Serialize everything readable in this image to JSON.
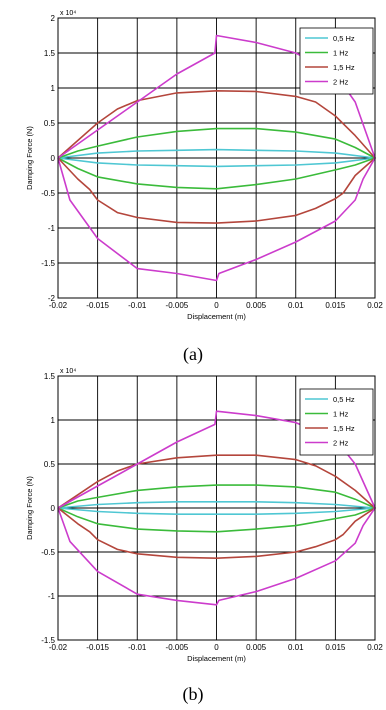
{
  "chart_data": [
    {
      "type": "line",
      "caption": "(a)",
      "xlabel": "Displacement (m)",
      "ylabel": "Damping Force (N)",
      "exponent": "x 10⁴",
      "xlim": [
        -0.02,
        0.02
      ],
      "ylim": [
        -2,
        2
      ],
      "xticks": [
        -0.02,
        -0.015,
        -0.01,
        -0.005,
        0,
        0.005,
        0.01,
        0.015,
        0.02
      ],
      "xticklabels": [
        "-0.02",
        "-0.015",
        "-0.01",
        "-0.005",
        "0",
        "0.005",
        "0.01",
        "0.015",
        "0.02"
      ],
      "yticks": [
        -2,
        -1.5,
        -1,
        -0.5,
        0,
        0.5,
        1,
        1.5,
        2
      ],
      "yticklabels": [
        "-2",
        "-1.5",
        "-1",
        "-0.5",
        "0",
        "0.5",
        "1",
        "1.5",
        "2"
      ],
      "grid": true,
      "legend_position": "top-right",
      "series": [
        {
          "name": "0,5 Hz",
          "color": "#4fc7d3",
          "x": [
            -0.02,
            -0.015,
            -0.01,
            -0.005,
            0,
            0.005,
            0.01,
            0.015,
            0.02,
            0.015,
            0.01,
            0.005,
            0,
            -0.005,
            -0.01,
            -0.015,
            -0.02
          ],
          "y": [
            0,
            0.07,
            0.1,
            0.11,
            0.12,
            0.11,
            0.1,
            0.07,
            0,
            -0.07,
            -0.1,
            -0.11,
            -0.12,
            -0.11,
            -0.1,
            -0.07,
            0
          ]
        },
        {
          "name": "1 Hz",
          "color": "#3bbb3b",
          "x": [
            -0.02,
            -0.0175,
            -0.015,
            -0.01,
            -0.005,
            0,
            0.005,
            0.01,
            0.015,
            0.0175,
            0.02,
            0.0175,
            0.015,
            0.01,
            0.005,
            0,
            -0.005,
            -0.01,
            -0.015,
            -0.0175,
            -0.02
          ],
          "y": [
            0,
            0.1,
            0.17,
            0.3,
            0.38,
            0.42,
            0.42,
            0.37,
            0.27,
            0.15,
            0,
            -0.1,
            -0.17,
            -0.3,
            -0.38,
            -0.44,
            -0.42,
            -0.37,
            -0.27,
            -0.15,
            0
          ]
        },
        {
          "name": "1,5 Hz",
          "color": "#b4463c",
          "x": [
            -0.02,
            -0.0175,
            -0.015,
            -0.0125,
            -0.01,
            -0.005,
            0,
            0.005,
            0.01,
            0.0125,
            0.015,
            0.0175,
            0.02,
            0.0175,
            0.016,
            0.015,
            0.0125,
            0.01,
            0.005,
            0,
            -0.005,
            -0.01,
            -0.0125,
            -0.015,
            -0.016,
            -0.0175,
            -0.02
          ],
          "y": [
            0,
            0.25,
            0.5,
            0.7,
            0.82,
            0.93,
            0.96,
            0.95,
            0.88,
            0.8,
            0.6,
            0.32,
            0,
            -0.25,
            -0.5,
            -0.58,
            -0.72,
            -0.82,
            -0.9,
            -0.93,
            -0.92,
            -0.85,
            -0.78,
            -0.6,
            -0.45,
            -0.3,
            0
          ]
        },
        {
          "name": "2 Hz",
          "color": "#cc3ccc",
          "x": [
            -0.02,
            -0.015,
            -0.01,
            -0.005,
            -0.0002,
            0,
            0.005,
            0.01,
            0.015,
            0.0175,
            0.02,
            0.0185,
            0.0175,
            0.015,
            0.01,
            0.005,
            0.0003,
            0,
            -0.005,
            -0.01,
            -0.015,
            -0.0185,
            -0.02
          ],
          "y": [
            0,
            0.4,
            0.8,
            1.2,
            1.5,
            1.75,
            1.65,
            1.5,
            1.2,
            0.8,
            0,
            -0.3,
            -0.6,
            -0.9,
            -1.2,
            -1.45,
            -1.65,
            -1.75,
            -1.65,
            -1.58,
            -1.15,
            -0.6,
            0
          ]
        }
      ]
    },
    {
      "type": "line",
      "caption": "(b)",
      "xlabel": "Displacement (m)",
      "ylabel": "Damping Force (N)",
      "exponent": "x 10⁴",
      "xlim": [
        -0.02,
        0.02
      ],
      "ylim": [
        -1.5,
        1.5
      ],
      "xticks": [
        -0.02,
        -0.015,
        -0.01,
        -0.005,
        0,
        0.005,
        0.01,
        0.015,
        0.02
      ],
      "xticklabels": [
        "-0.02",
        "-0.015",
        "-0.01",
        "-0.005",
        "0",
        "0.005",
        "0.01",
        "0.015",
        "0.02"
      ],
      "yticks": [
        -1.5,
        -1,
        -0.5,
        0,
        0.5,
        1,
        1.5
      ],
      "yticklabels": [
        "-1.5",
        "-1",
        "-0.5",
        "0",
        "0.5",
        "1",
        "1.5"
      ],
      "grid": true,
      "legend_position": "top-right",
      "series": [
        {
          "name": "0,5 Hz",
          "color": "#4fc7d3",
          "x": [
            -0.02,
            -0.015,
            -0.01,
            -0.005,
            0,
            0.005,
            0.01,
            0.015,
            0.02,
            0.015,
            0.01,
            0.005,
            0,
            -0.005,
            -0.01,
            -0.015,
            -0.02
          ],
          "y": [
            0,
            0.04,
            0.06,
            0.07,
            0.07,
            0.07,
            0.06,
            0.04,
            0,
            -0.04,
            -0.06,
            -0.07,
            -0.07,
            -0.07,
            -0.06,
            -0.04,
            0
          ]
        },
        {
          "name": "1 Hz",
          "color": "#3bbb3b",
          "x": [
            -0.02,
            -0.0175,
            -0.015,
            -0.01,
            -0.005,
            0,
            0.005,
            0.01,
            0.015,
            0.0175,
            0.02,
            0.0175,
            0.015,
            0.01,
            0.005,
            0,
            -0.005,
            -0.01,
            -0.015,
            -0.0175,
            -0.02
          ],
          "y": [
            0,
            0.08,
            0.12,
            0.2,
            0.24,
            0.26,
            0.26,
            0.24,
            0.18,
            0.1,
            0,
            -0.08,
            -0.12,
            -0.2,
            -0.24,
            -0.27,
            -0.26,
            -0.24,
            -0.18,
            -0.1,
            0
          ]
        },
        {
          "name": "1,5 Hz",
          "color": "#b4463c",
          "x": [
            -0.02,
            -0.0175,
            -0.015,
            -0.0125,
            -0.01,
            -0.005,
            0,
            0.005,
            0.01,
            0.0125,
            0.015,
            0.0175,
            0.02,
            0.0175,
            0.016,
            0.015,
            0.0125,
            0.01,
            0.005,
            0,
            -0.005,
            -0.01,
            -0.0125,
            -0.015,
            -0.016,
            -0.0175,
            -0.02
          ],
          "y": [
            0,
            0.15,
            0.3,
            0.42,
            0.5,
            0.57,
            0.6,
            0.6,
            0.55,
            0.48,
            0.36,
            0.2,
            0,
            -0.15,
            -0.3,
            -0.36,
            -0.44,
            -0.5,
            -0.55,
            -0.57,
            -0.56,
            -0.52,
            -0.47,
            -0.36,
            -0.27,
            -0.18,
            0
          ]
        },
        {
          "name": "2 Hz",
          "color": "#cc3ccc",
          "x": [
            -0.02,
            -0.015,
            -0.01,
            -0.005,
            -0.0002,
            0,
            0.005,
            0.01,
            0.015,
            0.0175,
            0.02,
            0.0185,
            0.0175,
            0.015,
            0.01,
            0.005,
            0.0003,
            0,
            -0.005,
            -0.01,
            -0.015,
            -0.0185,
            -0.02
          ],
          "y": [
            0,
            0.25,
            0.5,
            0.75,
            0.95,
            1.1,
            1.05,
            0.97,
            0.78,
            0.5,
            0,
            -0.2,
            -0.4,
            -0.6,
            -0.8,
            -0.95,
            -1.05,
            -1.1,
            -1.05,
            -0.98,
            -0.72,
            -0.38,
            0
          ]
        }
      ]
    }
  ]
}
